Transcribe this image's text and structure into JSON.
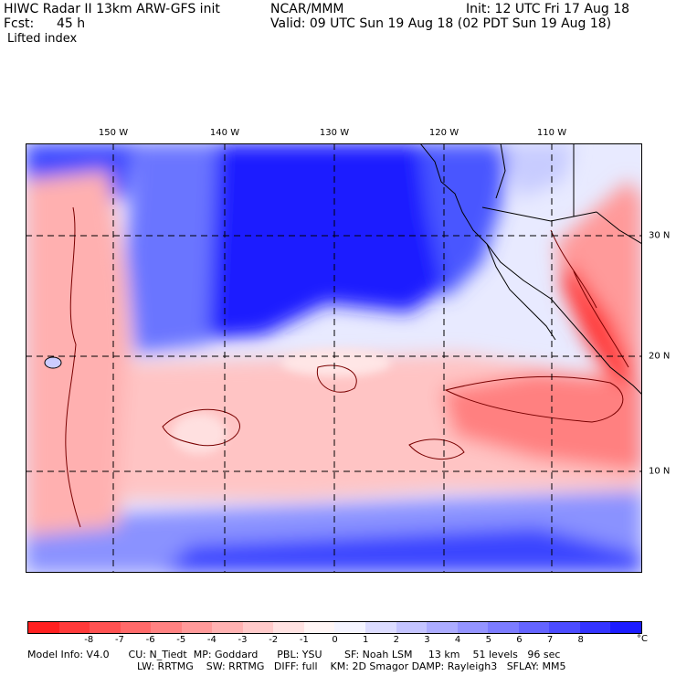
{
  "header": {
    "title_line1_left": "HIWC Radar II 13km ARW-GFS init",
    "title_line1_mid": "NCAR/MMM",
    "init": "Init: 12 UTC Fri 17 Aug 18",
    "fcst_label": "Fcst:",
    "fcst_value": "45 h",
    "valid": "Valid: 09 UTC Sun 19 Aug 18 (02 PDT Sun 19 Aug 18)",
    "field": "Lifted index"
  },
  "map": {
    "lon_labels": [
      "150 W",
      "140 W",
      "130 W",
      "120 W",
      "110 W"
    ],
    "lat_labels": [
      "30 N",
      "20 N",
      "10 N"
    ]
  },
  "colorbar": {
    "colors": [
      "#ff2020",
      "#ff3a3a",
      "#ff5252",
      "#ff6a6a",
      "#ff8282",
      "#ff9a9a",
      "#ffb2b2",
      "#ffcaca",
      "#ffe2e2",
      "#fff6f6",
      "#f4f4ff",
      "#dcdcff",
      "#c4c4ff",
      "#acacff",
      "#9494ff",
      "#7c7cff",
      "#6464ff",
      "#4c4cff",
      "#3434ff",
      "#1c1cff"
    ],
    "labels": [
      "-8",
      "-7",
      "-6",
      "-5",
      "-4",
      "-3",
      "-2",
      "-1",
      "0",
      "1",
      "2",
      "3",
      "4",
      "5",
      "6",
      "7",
      "8"
    ],
    "unit": "°C"
  },
  "footer": {
    "line1": "Model Info: V4.0      CU: N_Tiedt  MP: Goddard      PBL: YSU       SF: Noah LSM     13 km    51 levels   96 sec",
    "line2": "LW: RRTMG    SW: RRTMG   DIFF: full    KM: 2D Smagor DAMP: Rayleigh3   SFLAY: MM5"
  }
}
